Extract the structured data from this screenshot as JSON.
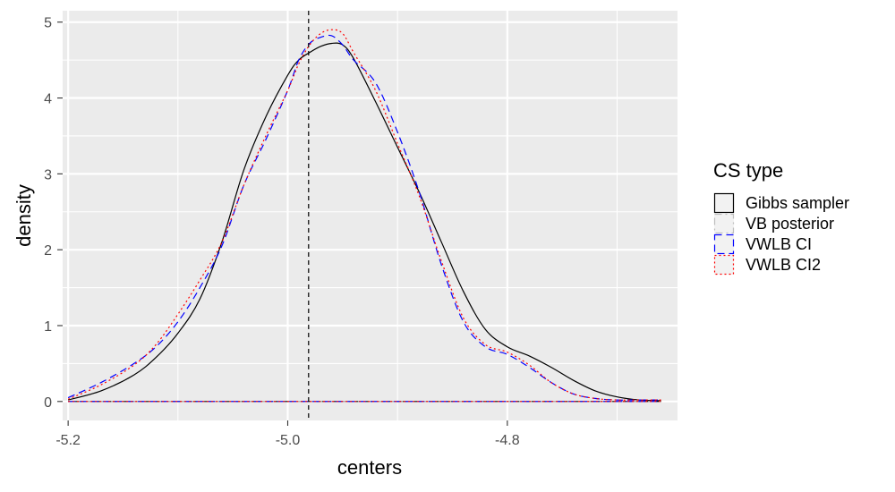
{
  "chart_data": {
    "type": "line",
    "xlabel": "centers",
    "ylabel": "density",
    "xlim": [
      -5.205,
      -4.645
    ],
    "ylim": [
      -0.25,
      5.15
    ],
    "x_ticks": [
      {
        "value": -5.2,
        "label": "-5.2"
      },
      {
        "value": -5.0,
        "label": "-5.0"
      },
      {
        "value": -4.8,
        "label": "-4.8"
      }
    ],
    "y_ticks": [
      {
        "value": 0,
        "label": "0"
      },
      {
        "value": 1,
        "label": "1"
      },
      {
        "value": 2,
        "label": "2"
      },
      {
        "value": 3,
        "label": "3"
      },
      {
        "value": 4,
        "label": "4"
      },
      {
        "value": 5,
        "label": "5"
      }
    ],
    "grid": true,
    "panel_background": "#ebebeb",
    "vline": {
      "x": -4.981,
      "color": "#000000",
      "dash": "dashed"
    },
    "legend": {
      "title": "CS type",
      "placement": "right",
      "entries": [
        {
          "label": "Gibbs sampler",
          "color": "#000000",
          "linetype": "solid"
        },
        {
          "label": "VB posterior",
          "color": "#bebebe",
          "linetype": "dashdot"
        },
        {
          "label": "VWLB CI",
          "color": "#0000ff",
          "linetype": "dashed"
        },
        {
          "label": "VWLB CI2",
          "color": "#ff0000",
          "linetype": "dotted"
        }
      ]
    },
    "series": [
      {
        "name": "Gibbs sampler",
        "color": "#000000",
        "linetype": "solid",
        "x": [
          -5.2,
          -5.17,
          -5.14,
          -5.12,
          -5.1,
          -5.08,
          -5.06,
          -5.04,
          -5.02,
          -5.0,
          -4.99,
          -4.98,
          -4.97,
          -4.96,
          -4.95,
          -4.94,
          -4.92,
          -4.9,
          -4.88,
          -4.86,
          -4.84,
          -4.82,
          -4.8,
          -4.78,
          -4.76,
          -4.74,
          -4.72,
          -4.7,
          -4.68,
          -4.66
        ],
        "y": [
          0.02,
          0.14,
          0.35,
          0.58,
          0.9,
          1.35,
          2.1,
          3.05,
          3.75,
          4.3,
          4.5,
          4.6,
          4.68,
          4.72,
          4.7,
          4.52,
          3.95,
          3.35,
          2.75,
          2.1,
          1.45,
          0.95,
          0.72,
          0.6,
          0.45,
          0.28,
          0.14,
          0.06,
          0.02,
          0.01
        ]
      },
      {
        "name": "VB posterior",
        "color": "#bebebe",
        "linetype": "dashdot",
        "x": [
          -5.2,
          -4.66
        ],
        "y": [
          0.0,
          0.0
        ]
      },
      {
        "name": "VWLB CI",
        "color": "#0000ff",
        "linetype": "dashed",
        "x": [
          -5.2,
          -5.17,
          -5.14,
          -5.12,
          -5.1,
          -5.08,
          -5.06,
          -5.04,
          -5.02,
          -5.0,
          -4.99,
          -4.98,
          -4.97,
          -4.96,
          -4.95,
          -4.94,
          -4.92,
          -4.9,
          -4.88,
          -4.86,
          -4.84,
          -4.82,
          -4.8,
          -4.78,
          -4.76,
          -4.74,
          -4.72,
          -4.7,
          -4.68,
          -4.66
        ],
        "y": [
          0.05,
          0.25,
          0.5,
          0.72,
          1.05,
          1.5,
          2.05,
          2.85,
          3.45,
          4.1,
          4.5,
          4.72,
          4.8,
          4.82,
          4.7,
          4.5,
          4.2,
          3.55,
          2.75,
          1.8,
          1.05,
          0.72,
          0.62,
          0.45,
          0.25,
          0.1,
          0.04,
          0.02,
          0.02,
          0.02
        ]
      },
      {
        "name": "VWLB CI2",
        "color": "#ff0000",
        "linetype": "dotted",
        "x": [
          -5.2,
          -5.17,
          -5.14,
          -5.12,
          -5.1,
          -5.08,
          -5.06,
          -5.04,
          -5.02,
          -5.0,
          -4.99,
          -4.98,
          -4.97,
          -4.96,
          -4.95,
          -4.94,
          -4.92,
          -4.9,
          -4.88,
          -4.86,
          -4.84,
          -4.82,
          -4.8,
          -4.78,
          -4.76,
          -4.74,
          -4.72,
          -4.7,
          -4.68,
          -4.66
        ],
        "y": [
          0.03,
          0.22,
          0.48,
          0.75,
          1.15,
          1.6,
          2.1,
          2.85,
          3.5,
          4.1,
          4.45,
          4.7,
          4.85,
          4.9,
          4.85,
          4.6,
          4.1,
          3.4,
          2.7,
          1.85,
          1.1,
          0.75,
          0.65,
          0.48,
          0.25,
          0.1,
          0.04,
          0.02,
          0.02,
          0.02
        ]
      }
    ]
  }
}
